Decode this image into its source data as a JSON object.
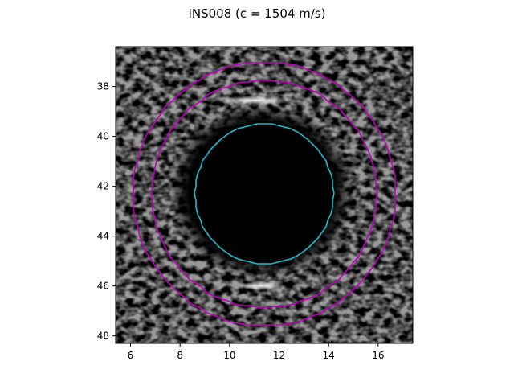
{
  "figure": {
    "title": "INS008 (c = 1504 m/s)"
  },
  "chart_data": {
    "type": "image",
    "title": "INS008 (c = 1504 m/s)",
    "xlim": [
      5.4,
      17.4
    ],
    "ylim": [
      48.3,
      36.4
    ],
    "x_ticks": [
      6,
      8,
      10,
      12,
      14,
      16
    ],
    "y_ticks": [
      38,
      40,
      42,
      44,
      46,
      48
    ],
    "grid": false,
    "image": {
      "description_kind": "ultrasound-speckle",
      "background_color": "#9a9a9a",
      "dark_region": {
        "center": [
          11.3,
          42.2
        ],
        "radius_x": 3.75,
        "radius_y": 3.55,
        "color": "#000000"
      },
      "bright_band_top": {
        "center": [
          11.0,
          38.55
        ],
        "width": 3.6,
        "height": 0.35
      },
      "bright_band_bottom": {
        "center": [
          11.3,
          46.0
        ],
        "width": 2.0,
        "height": 0.35
      }
    },
    "contours": [
      {
        "name": "inner",
        "color": "#17becf",
        "center": [
          11.4,
          42.3
        ],
        "radius_x": 2.8,
        "radius_y": 2.8,
        "style": "octagonal"
      },
      {
        "name": "outer-1",
        "color": "#bf00bf",
        "center": [
          11.4,
          42.3
        ],
        "radius_x": 4.55,
        "radius_y": 4.55
      },
      {
        "name": "outer-2",
        "color": "#bf00bf",
        "center": [
          11.4,
          42.3
        ],
        "radius_x": 5.3,
        "radius_y": 5.28
      }
    ]
  },
  "colors": {
    "cyan": "#17becf",
    "magenta": "#bf00bf"
  }
}
